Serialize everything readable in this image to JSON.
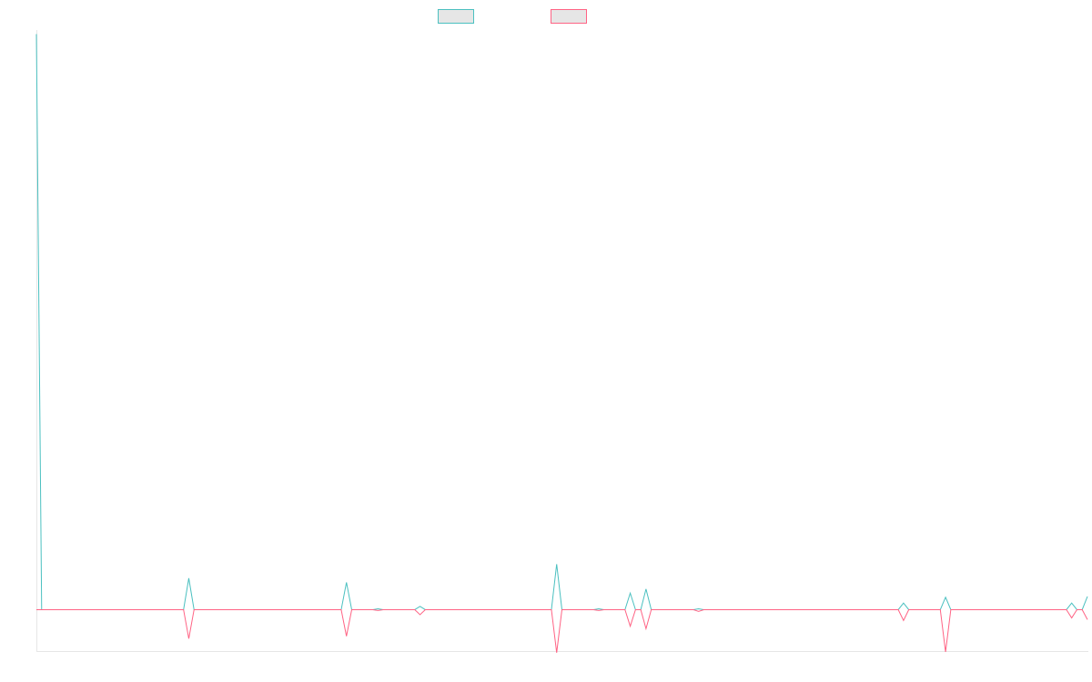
{
  "chart_data": {
    "type": "line",
    "title": "",
    "xlabel": "",
    "ylabel": "",
    "grid": false,
    "legend_placement": "top-center",
    "x": [
      0,
      1,
      2,
      3,
      4,
      5,
      6,
      7,
      8,
      9,
      10,
      11,
      12,
      13,
      14,
      15,
      16,
      17,
      18,
      19,
      20,
      21,
      22,
      23,
      24,
      25,
      26,
      27,
      28,
      29,
      30,
      31,
      32,
      33,
      34,
      35,
      36,
      37,
      38,
      39,
      40,
      41,
      42,
      43,
      44,
      45,
      46,
      47,
      48,
      49,
      50,
      51,
      52,
      53,
      54,
      55,
      56,
      57,
      58,
      59,
      60,
      61,
      62,
      63,
      64,
      65,
      66,
      67,
      68,
      69,
      70,
      71,
      72,
      73,
      74,
      75,
      76,
      77,
      78,
      79,
      80,
      81,
      82,
      83,
      84,
      85,
      86,
      87,
      88,
      89,
      90,
      91,
      92,
      93,
      94,
      95,
      96,
      97,
      98,
      99,
      100,
      101,
      102,
      103,
      104,
      105,
      106,
      107,
      108,
      109,
      110,
      111,
      112,
      113,
      114,
      115,
      116,
      117,
      118,
      119,
      120,
      121,
      122,
      123,
      124,
      125,
      126,
      127,
      128,
      129,
      130,
      131,
      132,
      133,
      134,
      135,
      136,
      137,
      138,
      139,
      140,
      141,
      142,
      143,
      144,
      145,
      146,
      147,
      148,
      149,
      150,
      151,
      152,
      153,
      154,
      155,
      156,
      157,
      158,
      159,
      160,
      161,
      162,
      163,
      164,
      165,
      166,
      167,
      168,
      169,
      170,
      171,
      172,
      173,
      174,
      175,
      176,
      177,
      178,
      179,
      180,
      181,
      182,
      183,
      184,
      185,
      186,
      187,
      188,
      189,
      190,
      191,
      192,
      193,
      194,
      195,
      196,
      197,
      198,
      199,
      200
    ],
    "xlim": [
      0,
      200
    ],
    "ylim": [
      -50,
      700
    ],
    "series": [
      {
        "color": "#4bc0c0",
        "points": [
          [
            0,
            695
          ],
          [
            1,
            0
          ],
          [
            28,
            0
          ],
          [
            29,
            38
          ],
          [
            30,
            0
          ],
          [
            58,
            0
          ],
          [
            59,
            33
          ],
          [
            60,
            0
          ],
          [
            64,
            0
          ],
          [
            65,
            1
          ],
          [
            66,
            0
          ],
          [
            72,
            0
          ],
          [
            73,
            4
          ],
          [
            74,
            0
          ],
          [
            98,
            0
          ],
          [
            99,
            55
          ],
          [
            100,
            0
          ],
          [
            106,
            0
          ],
          [
            107,
            1
          ],
          [
            108,
            0
          ],
          [
            112,
            0
          ],
          [
            113,
            20
          ],
          [
            114,
            0
          ],
          [
            115,
            0
          ],
          [
            116,
            25
          ],
          [
            117,
            0
          ],
          [
            125,
            0
          ],
          [
            126,
            1
          ],
          [
            127,
            0
          ],
          [
            164,
            0
          ],
          [
            165,
            8
          ],
          [
            166,
            0
          ],
          [
            172,
            0
          ],
          [
            173,
            15
          ],
          [
            174,
            0
          ],
          [
            196,
            0
          ],
          [
            197,
            8
          ],
          [
            198,
            0
          ],
          [
            199,
            0
          ],
          [
            200,
            16
          ]
        ]
      },
      {
        "color": "#ff6384",
        "points": [
          [
            0,
            0
          ],
          [
            28,
            0
          ],
          [
            29,
            -35
          ],
          [
            30,
            0
          ],
          [
            58,
            0
          ],
          [
            59,
            -32
          ],
          [
            60,
            0
          ],
          [
            64,
            0
          ],
          [
            65,
            -1
          ],
          [
            66,
            0
          ],
          [
            72,
            0
          ],
          [
            73,
            -6
          ],
          [
            74,
            0
          ],
          [
            98,
            0
          ],
          [
            99,
            -52
          ],
          [
            100,
            0
          ],
          [
            106,
            0
          ],
          [
            107,
            -1
          ],
          [
            108,
            0
          ],
          [
            112,
            0
          ],
          [
            113,
            -20
          ],
          [
            114,
            0
          ],
          [
            115,
            0
          ],
          [
            116,
            -23
          ],
          [
            117,
            0
          ],
          [
            125,
            0
          ],
          [
            126,
            -2
          ],
          [
            127,
            0
          ],
          [
            164,
            0
          ],
          [
            165,
            -13
          ],
          [
            166,
            0
          ],
          [
            172,
            0
          ],
          [
            173,
            -51
          ],
          [
            174,
            0
          ],
          [
            196,
            0
          ],
          [
            197,
            -10
          ],
          [
            198,
            0
          ],
          [
            199,
            0
          ],
          [
            200,
            -12
          ]
        ]
      }
    ]
  }
}
